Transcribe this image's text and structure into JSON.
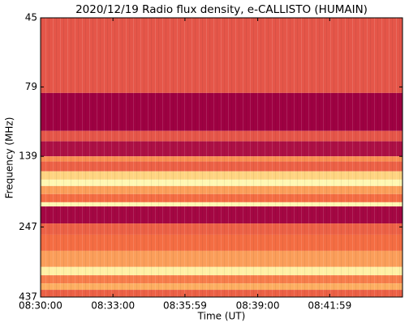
{
  "chart_data": {
    "type": "spectrogram",
    "title": "2020/12/19  Radio flux density, e-CALLISTO (HUMAIN)",
    "xlabel": "Time (UT)",
    "ylabel": "Frequency (MHz)",
    "xlim": [
      30600,
      31500
    ],
    "xticks": [
      {
        "value": 30600,
        "label": "08:30:00"
      },
      {
        "value": 30780,
        "label": "08:33:00"
      },
      {
        "value": 30959,
        "label": "08:35:59"
      },
      {
        "value": 31140,
        "label": "08:39:00"
      },
      {
        "value": 31319,
        "label": "08:41:59"
      }
    ],
    "ylim": [
      45,
      437
    ],
    "yticks": [
      45,
      79,
      139,
      247,
      437
    ],
    "ylog": true,
    "yinverted": true,
    "colormap": [
      "#9e0142",
      "#d53e4f",
      "#f46d43",
      "#fdae61",
      "#fee08b",
      "#ffffbf"
    ],
    "rows": [
      {
        "low": 45,
        "high": 83,
        "value": 0.3
      },
      {
        "low": 83,
        "high": 113,
        "value": 0.0
      },
      {
        "low": 113,
        "high": 123,
        "value": 0.3
      },
      {
        "low": 123,
        "high": 139,
        "value": 0.05
      },
      {
        "low": 139,
        "high": 145,
        "value": 0.5
      },
      {
        "low": 145,
        "high": 157,
        "value": 0.35
      },
      {
        "low": 157,
        "high": 168,
        "value": 0.75
      },
      {
        "low": 168,
        "high": 177,
        "value": 0.95
      },
      {
        "low": 177,
        "high": 189,
        "value": 0.55
      },
      {
        "low": 189,
        "high": 202,
        "value": 0.4
      },
      {
        "low": 202,
        "high": 209,
        "value": 0.95
      },
      {
        "low": 209,
        "high": 240,
        "value": 0.02
      },
      {
        "low": 240,
        "high": 263,
        "value": 0.35
      },
      {
        "low": 263,
        "high": 300,
        "value": 0.4
      },
      {
        "low": 300,
        "high": 342,
        "value": 0.55
      },
      {
        "low": 342,
        "high": 366,
        "value": 0.9
      },
      {
        "low": 366,
        "high": 391,
        "value": 0.45
      },
      {
        "low": 391,
        "high": 412,
        "value": 0.6
      },
      {
        "low": 412,
        "high": 437,
        "value": 0.35
      }
    ]
  }
}
